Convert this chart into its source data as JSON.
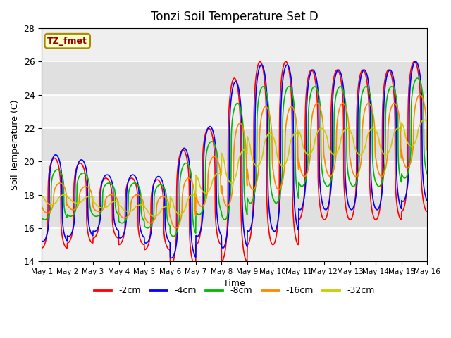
{
  "title": "Tonzi Soil Temperature Set D",
  "xlabel": "Time",
  "ylabel": "Soil Temperature (C)",
  "ylim": [
    14,
    28
  ],
  "xlim": [
    0,
    15
  ],
  "xtick_labels": [
    "May 1",
    "May 2",
    "May 3",
    "May 4",
    "May 5",
    "May 6",
    "May 7",
    "May 8",
    "May 9",
    "May 10",
    "May 11",
    "May 12",
    "May 13",
    "May 14",
    "May 15",
    "May 16"
  ],
  "ytick_values": [
    14,
    16,
    18,
    20,
    22,
    24,
    26,
    28
  ],
  "series_labels": [
    "-2cm",
    "-4cm",
    "-8cm",
    "-16cm",
    "-32cm"
  ],
  "series_colors": [
    "#ff0000",
    "#0000ff",
    "#00bb00",
    "#ff8800",
    "#cccc00"
  ],
  "line_width": 1.2,
  "background_color": "#ffffff",
  "plot_bg_color": "#e0e0e0",
  "annotation_text": "TZ_fmet",
  "annotation_bg": "#ffffcc",
  "annotation_border": "#aa8800",
  "n_points_per_day": 96,
  "mean_trend": [
    17.5,
    17.5,
    17.2,
    17.0,
    16.8,
    17.2,
    18.5,
    19.5,
    20.5,
    20.5,
    21.0,
    21.0,
    21.0,
    21.0,
    21.5,
    21.5
  ],
  "amp_2cm": [
    2.7,
    2.4,
    1.8,
    2.0,
    2.1,
    3.5,
    3.5,
    5.5,
    5.5,
    5.5,
    4.5,
    4.5,
    4.5,
    4.5,
    4.5,
    3.5
  ],
  "amp_4cm": [
    2.6,
    2.3,
    1.7,
    1.9,
    2.0,
    3.3,
    3.3,
    5.0,
    5.0,
    5.0,
    4.2,
    4.2,
    4.2,
    4.2,
    4.2,
    3.2
  ],
  "amp_8cm": [
    1.5,
    1.3,
    1.0,
    1.2,
    1.3,
    2.2,
    2.2,
    3.5,
    3.5,
    3.5,
    3.0,
    3.0,
    3.0,
    3.0,
    3.0,
    2.5
  ],
  "amp_16cm": [
    0.9,
    0.7,
    0.5,
    0.7,
    0.8,
    1.5,
    1.5,
    2.5,
    2.5,
    2.5,
    2.2,
    2.2,
    2.2,
    2.2,
    2.2,
    1.8
  ],
  "amp_32cm": [
    0.3,
    0.2,
    0.2,
    0.2,
    0.3,
    0.6,
    0.6,
    1.0,
    1.0,
    1.0,
    0.8,
    0.8,
    0.8,
    0.8,
    0.8,
    0.7
  ],
  "phase_2cm": 0.0,
  "phase_4cm": 0.05,
  "phase_8cm": 0.12,
  "phase_16cm": 0.22,
  "phase_32cm": 0.38,
  "sharpness": 3.5
}
